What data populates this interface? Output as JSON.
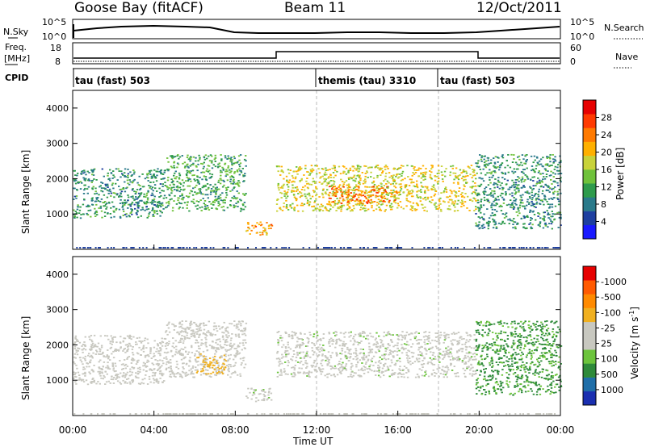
{
  "header": {
    "station": "Goose Bay (fitACF)",
    "beam": "Beam 11",
    "date": "12/Oct/2011"
  },
  "panels": {
    "nsky": {
      "left_label": "N.Sky",
      "right_label": "N.Search",
      "left_ticks": [
        "10^5",
        "10^0"
      ],
      "right_ticks": [
        "10^5",
        "10^0"
      ]
    },
    "freq": {
      "left_label_1": "Freq.",
      "left_label_2": "[MHz]",
      "right_label": "Nave",
      "left_ticks": [
        "18",
        "8"
      ],
      "right_ticks": [
        "60",
        "0"
      ]
    },
    "cpid": {
      "label": "CPID",
      "modes": [
        {
          "name": "tau (fast) 503",
          "start": "00:00"
        },
        {
          "name": "themis (tau) 3310",
          "start": "12:00"
        },
        {
          "name": "tau (fast) 503",
          "start": "18:00"
        }
      ]
    }
  },
  "axes": {
    "x_ticks": [
      "00:00",
      "04:00",
      "08:00",
      "12:00",
      "16:00",
      "20:00",
      "00:00"
    ],
    "x_label": "Time UT",
    "y_label": "Slant Range [km]",
    "y_ticks": [
      "1000",
      "2000",
      "3000",
      "4000"
    ]
  },
  "colorbars": {
    "power": {
      "label": "Power [dB]",
      "ticks": [
        "4",
        "8",
        "12",
        "16",
        "20",
        "24",
        "28"
      ],
      "colors": [
        "#1a1aff",
        "#1e3fa0",
        "#2a7a8a",
        "#2e9b4c",
        "#6fc23b",
        "#c8d23a",
        "#ffb000",
        "#ff7a00",
        "#ff3a00",
        "#e60000"
      ]
    },
    "velocity": {
      "label": "Velocity [m s",
      "label_sup": "-1",
      "label_end": "]",
      "ticks": [
        "1000",
        "500",
        "100",
        "25",
        "-25",
        "-100",
        "-500",
        "-1000"
      ],
      "colors": [
        "#1a2fb0",
        "#1f6ea8",
        "#2e8a3a",
        "#6cc43c",
        "#c8c8c0",
        "#c8c8c0",
        "#f0b020",
        "#ff8a00",
        "#ff5a00",
        "#e60000"
      ]
    }
  },
  "chart_data": [
    {
      "type": "heatmap",
      "title": "",
      "xlabel": "Time UT",
      "ylabel": "Slant Range [km]",
      "xlim": [
        "00:00",
        "24:00"
      ],
      "ylim": [
        0,
        4500
      ],
      "value": "Power [dB]",
      "colorbar_ticks": [
        4,
        8,
        12,
        16,
        20,
        24,
        28
      ],
      "regions": [
        {
          "t0": 0.0,
          "t1": 4.5,
          "r0": 900,
          "r1": 2300,
          "level": 10
        },
        {
          "t0": 4.5,
          "t1": 8.5,
          "r0": 1100,
          "r1": 2700,
          "level": 12
        },
        {
          "t0": 8.5,
          "t1": 9.8,
          "r0": 400,
          "r1": 800,
          "level": 22
        },
        {
          "t0": 10.0,
          "t1": 19.8,
          "r0": 1100,
          "r1": 2400,
          "level": 18
        },
        {
          "t0": 12.5,
          "t1": 16.0,
          "r0": 1300,
          "r1": 1800,
          "level": 24
        },
        {
          "t0": 19.8,
          "t1": 24.0,
          "r0": 600,
          "r1": 2700,
          "level": 10
        }
      ]
    },
    {
      "type": "heatmap",
      "title": "",
      "xlabel": "Time UT",
      "ylabel": "Slant Range [km]",
      "xlim": [
        "00:00",
        "24:00"
      ],
      "ylim": [
        0,
        4500
      ],
      "value": "Velocity [m s-1]",
      "colorbar_ticks": [
        1000,
        500,
        100,
        25,
        -25,
        -100,
        -500,
        -1000
      ],
      "regions": [
        {
          "t0": 0.0,
          "t1": 4.5,
          "r0": 900,
          "r1": 2300,
          "level": -20
        },
        {
          "t0": 4.5,
          "t1": 8.5,
          "r0": 1100,
          "r1": 2700,
          "level": -10
        },
        {
          "t0": 6.0,
          "t1": 7.5,
          "r0": 1200,
          "r1": 1800,
          "level": -150
        },
        {
          "t0": 8.5,
          "t1": 9.8,
          "r0": 400,
          "r1": 800,
          "level": 0
        },
        {
          "t0": 10.0,
          "t1": 19.8,
          "r0": 1100,
          "r1": 2400,
          "level": 0
        },
        {
          "t0": 19.8,
          "t1": 24.0,
          "r0": 600,
          "r1": 2700,
          "level": 120
        }
      ]
    }
  ]
}
